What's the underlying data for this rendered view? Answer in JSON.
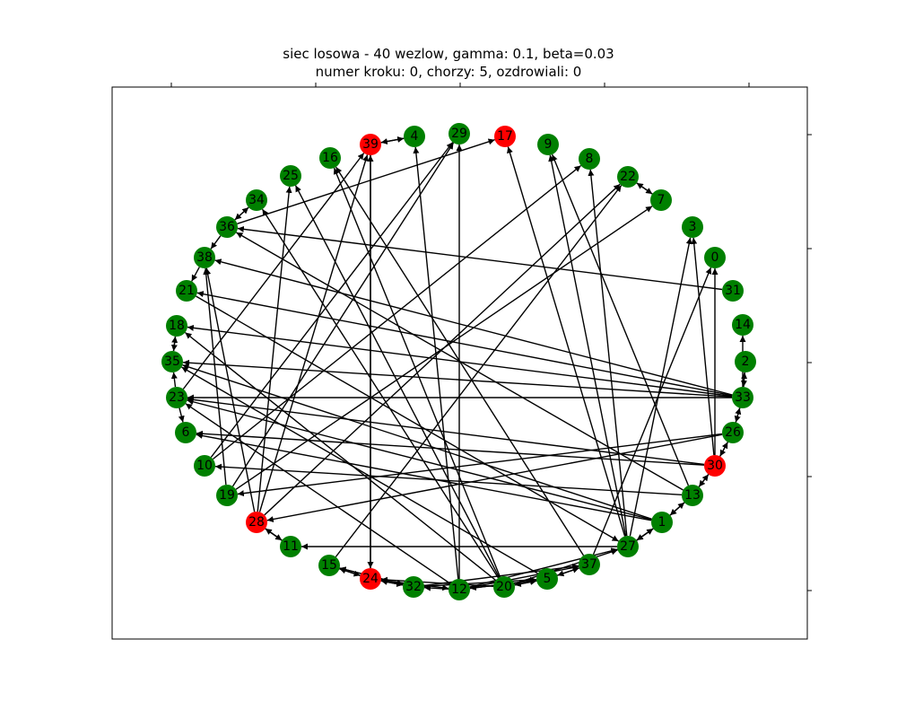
{
  "figure": {
    "title_line1": "siec losowa - 40 wezlow, gamma: 0.1, beta=0.03",
    "title_line2": "numer kroku: 0, chorzy: 5, ozdrowiali: 0"
  },
  "colors": {
    "healthy": "#008000",
    "infected": "#ff0000",
    "edge": "#000000"
  },
  "nodes": [
    {
      "id": "0",
      "status": "healthy"
    },
    {
      "id": "1",
      "status": "healthy"
    },
    {
      "id": "2",
      "status": "healthy"
    },
    {
      "id": "3",
      "status": "healthy"
    },
    {
      "id": "4",
      "status": "healthy"
    },
    {
      "id": "5",
      "status": "healthy"
    },
    {
      "id": "6",
      "status": "healthy"
    },
    {
      "id": "7",
      "status": "healthy"
    },
    {
      "id": "8",
      "status": "healthy"
    },
    {
      "id": "9",
      "status": "healthy"
    },
    {
      "id": "10",
      "status": "healthy"
    },
    {
      "id": "11",
      "status": "healthy"
    },
    {
      "id": "12",
      "status": "healthy"
    },
    {
      "id": "13",
      "status": "healthy"
    },
    {
      "id": "14",
      "status": "healthy"
    },
    {
      "id": "15",
      "status": "healthy"
    },
    {
      "id": "16",
      "status": "healthy"
    },
    {
      "id": "17",
      "status": "infected"
    },
    {
      "id": "18",
      "status": "healthy"
    },
    {
      "id": "19",
      "status": "healthy"
    },
    {
      "id": "20",
      "status": "healthy"
    },
    {
      "id": "21",
      "status": "healthy"
    },
    {
      "id": "22",
      "status": "healthy"
    },
    {
      "id": "23",
      "status": "healthy"
    },
    {
      "id": "24",
      "status": "infected"
    },
    {
      "id": "25",
      "status": "healthy"
    },
    {
      "id": "26",
      "status": "healthy"
    },
    {
      "id": "27",
      "status": "healthy"
    },
    {
      "id": "28",
      "status": "infected"
    },
    {
      "id": "29",
      "status": "healthy"
    },
    {
      "id": "30",
      "status": "infected"
    },
    {
      "id": "31",
      "status": "healthy"
    },
    {
      "id": "32",
      "status": "healthy"
    },
    {
      "id": "33",
      "status": "healthy"
    },
    {
      "id": "34",
      "status": "healthy"
    },
    {
      "id": "35",
      "status": "healthy"
    },
    {
      "id": "36",
      "status": "healthy"
    },
    {
      "id": "37",
      "status": "healthy"
    },
    {
      "id": "38",
      "status": "healthy"
    },
    {
      "id": "39",
      "status": "infected"
    }
  ],
  "edges": [
    [
      "39",
      "4"
    ],
    [
      "4",
      "39"
    ],
    [
      "22",
      "7"
    ],
    [
      "7",
      "22"
    ],
    [
      "33",
      "2"
    ],
    [
      "2",
      "33"
    ],
    [
      "33",
      "14"
    ],
    [
      "33",
      "26"
    ],
    [
      "26",
      "33"
    ],
    [
      "30",
      "26"
    ],
    [
      "26",
      "30"
    ],
    [
      "13",
      "30"
    ],
    [
      "30",
      "13"
    ],
    [
      "1",
      "13"
    ],
    [
      "13",
      "1"
    ],
    [
      "27",
      "1"
    ],
    [
      "1",
      "27"
    ],
    [
      "5",
      "37"
    ],
    [
      "37",
      "5"
    ],
    [
      "24",
      "32"
    ],
    [
      "32",
      "24"
    ],
    [
      "15",
      "24"
    ],
    [
      "24",
      "15"
    ],
    [
      "15",
      "32"
    ],
    [
      "32",
      "15"
    ],
    [
      "28",
      "11"
    ],
    [
      "11",
      "28"
    ],
    [
      "36",
      "34"
    ],
    [
      "34",
      "36"
    ],
    [
      "38",
      "21"
    ],
    [
      "36",
      "38"
    ],
    [
      "35",
      "18"
    ],
    [
      "18",
      "35"
    ],
    [
      "23",
      "35"
    ],
    [
      "23",
      "6"
    ],
    [
      "39",
      "24"
    ],
    [
      "24",
      "39"
    ],
    [
      "36",
      "17"
    ],
    [
      "12",
      "29"
    ],
    [
      "12",
      "4"
    ],
    [
      "20",
      "16"
    ],
    [
      "20",
      "25"
    ],
    [
      "27",
      "9"
    ],
    [
      "27",
      "8"
    ],
    [
      "13",
      "9"
    ],
    [
      "30",
      "3"
    ],
    [
      "30",
      "0"
    ],
    [
      "27",
      "3"
    ],
    [
      "37",
      "0"
    ],
    [
      "13",
      "36"
    ],
    [
      "31",
      "36"
    ],
    [
      "33",
      "38"
    ],
    [
      "33",
      "21"
    ],
    [
      "33",
      "18"
    ],
    [
      "33",
      "35"
    ],
    [
      "33",
      "23"
    ],
    [
      "30",
      "6"
    ],
    [
      "30",
      "23"
    ],
    [
      "13",
      "10"
    ],
    [
      "1",
      "23"
    ],
    [
      "1",
      "6"
    ],
    [
      "10",
      "29"
    ],
    [
      "10",
      "8"
    ],
    [
      "19",
      "29"
    ],
    [
      "19",
      "7"
    ],
    [
      "28",
      "22"
    ],
    [
      "27",
      "17"
    ],
    [
      "26",
      "28"
    ],
    [
      "26",
      "19"
    ],
    [
      "27",
      "11"
    ],
    [
      "20",
      "18"
    ],
    [
      "20",
      "34"
    ],
    [
      "5",
      "35"
    ],
    [
      "37",
      "16"
    ],
    [
      "12",
      "23"
    ],
    [
      "1",
      "35"
    ],
    [
      "19",
      "38"
    ],
    [
      "28",
      "38"
    ],
    [
      "28",
      "25"
    ],
    [
      "28",
      "39"
    ],
    [
      "23",
      "39"
    ],
    [
      "15",
      "22"
    ],
    [
      "20",
      "24"
    ],
    [
      "20",
      "27"
    ],
    [
      "12",
      "27"
    ],
    [
      "12",
      "37"
    ],
    [
      "32",
      "37"
    ],
    [
      "32",
      "5"
    ],
    [
      "20",
      "5"
    ],
    [
      "12",
      "5"
    ],
    [
      "21",
      "27"
    ],
    [
      "24",
      "12"
    ],
    [
      "12",
      "32"
    ],
    [
      "5",
      "12"
    ],
    [
      "5",
      "20"
    ]
  ]
}
